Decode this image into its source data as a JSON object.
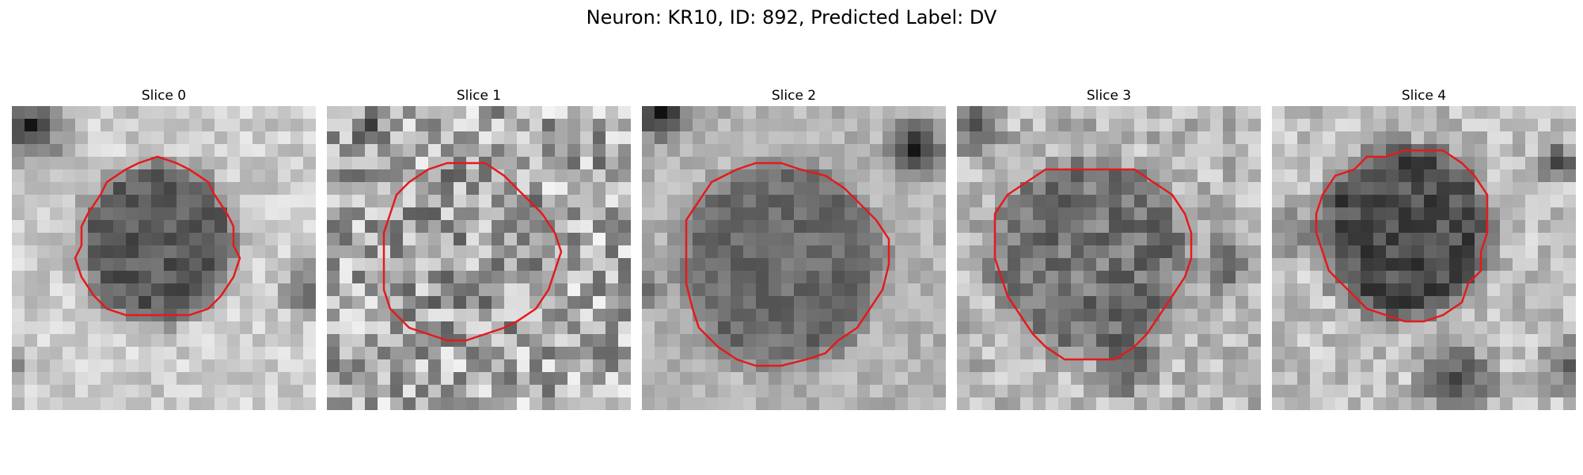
{
  "figure": {
    "title": "Neuron: KR10, ID: 892, Predicted Label: DV"
  },
  "slices": [
    {
      "label": "Slice 0",
      "contour_icon": "red-outline"
    },
    {
      "label": "Slice 1",
      "contour_icon": "red-outline"
    },
    {
      "label": "Slice 2",
      "contour_icon": "red-outline"
    },
    {
      "label": "Slice 3",
      "contour_icon": "red-outline"
    },
    {
      "label": "Slice 4",
      "contour_icon": "red-outline"
    }
  ],
  "colors": {
    "contour": "#e41a1c",
    "background": "#ffffff"
  }
}
